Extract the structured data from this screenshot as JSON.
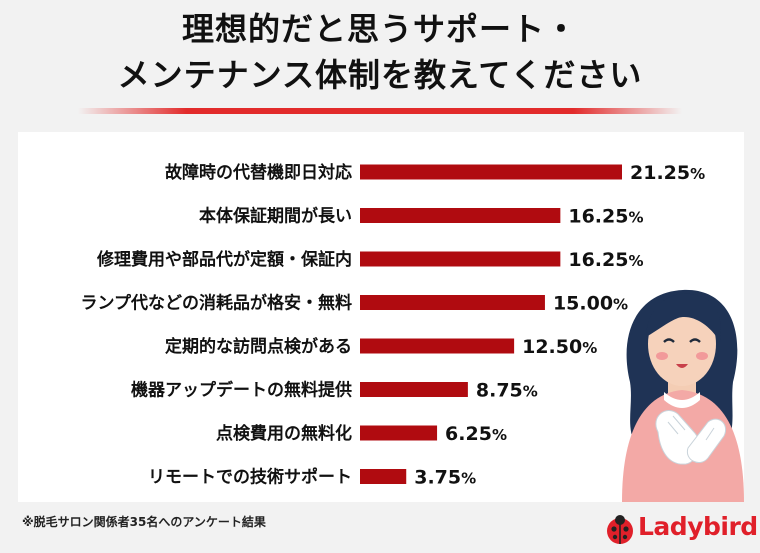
{
  "title": {
    "line1": "理想的だと思うサポート・",
    "line2": "メンテナンス体制を教えてください"
  },
  "footnote": "※脱毛サロン関係者35名へのアンケート結果",
  "logo_text": "Ladybird",
  "colors": {
    "bar": "#b00b10",
    "title_underline": "#e22b2b",
    "logo": "#e0202a"
  },
  "chart_data": {
    "type": "bar",
    "orientation": "horizontal",
    "categories": [
      "故障時の代替機即日対応",
      "本体保証期間が長い",
      "修理費用や部品代が定額・保証内",
      "ランプ代などの消耗品が格安・無料",
      "定期的な訪問点検がある",
      "機器アップデートの無料提供",
      "点検費用の無料化",
      "リモートでの技術サポート"
    ],
    "values": [
      21.25,
      16.25,
      16.25,
      15.0,
      12.5,
      8.75,
      6.25,
      3.75
    ],
    "value_labels": [
      "21.25",
      "16.25",
      "16.25",
      "15.00",
      "12.50",
      "8.75",
      "6.25",
      "3.75"
    ],
    "unit": "%",
    "xlim": [
      0,
      21.25
    ]
  }
}
